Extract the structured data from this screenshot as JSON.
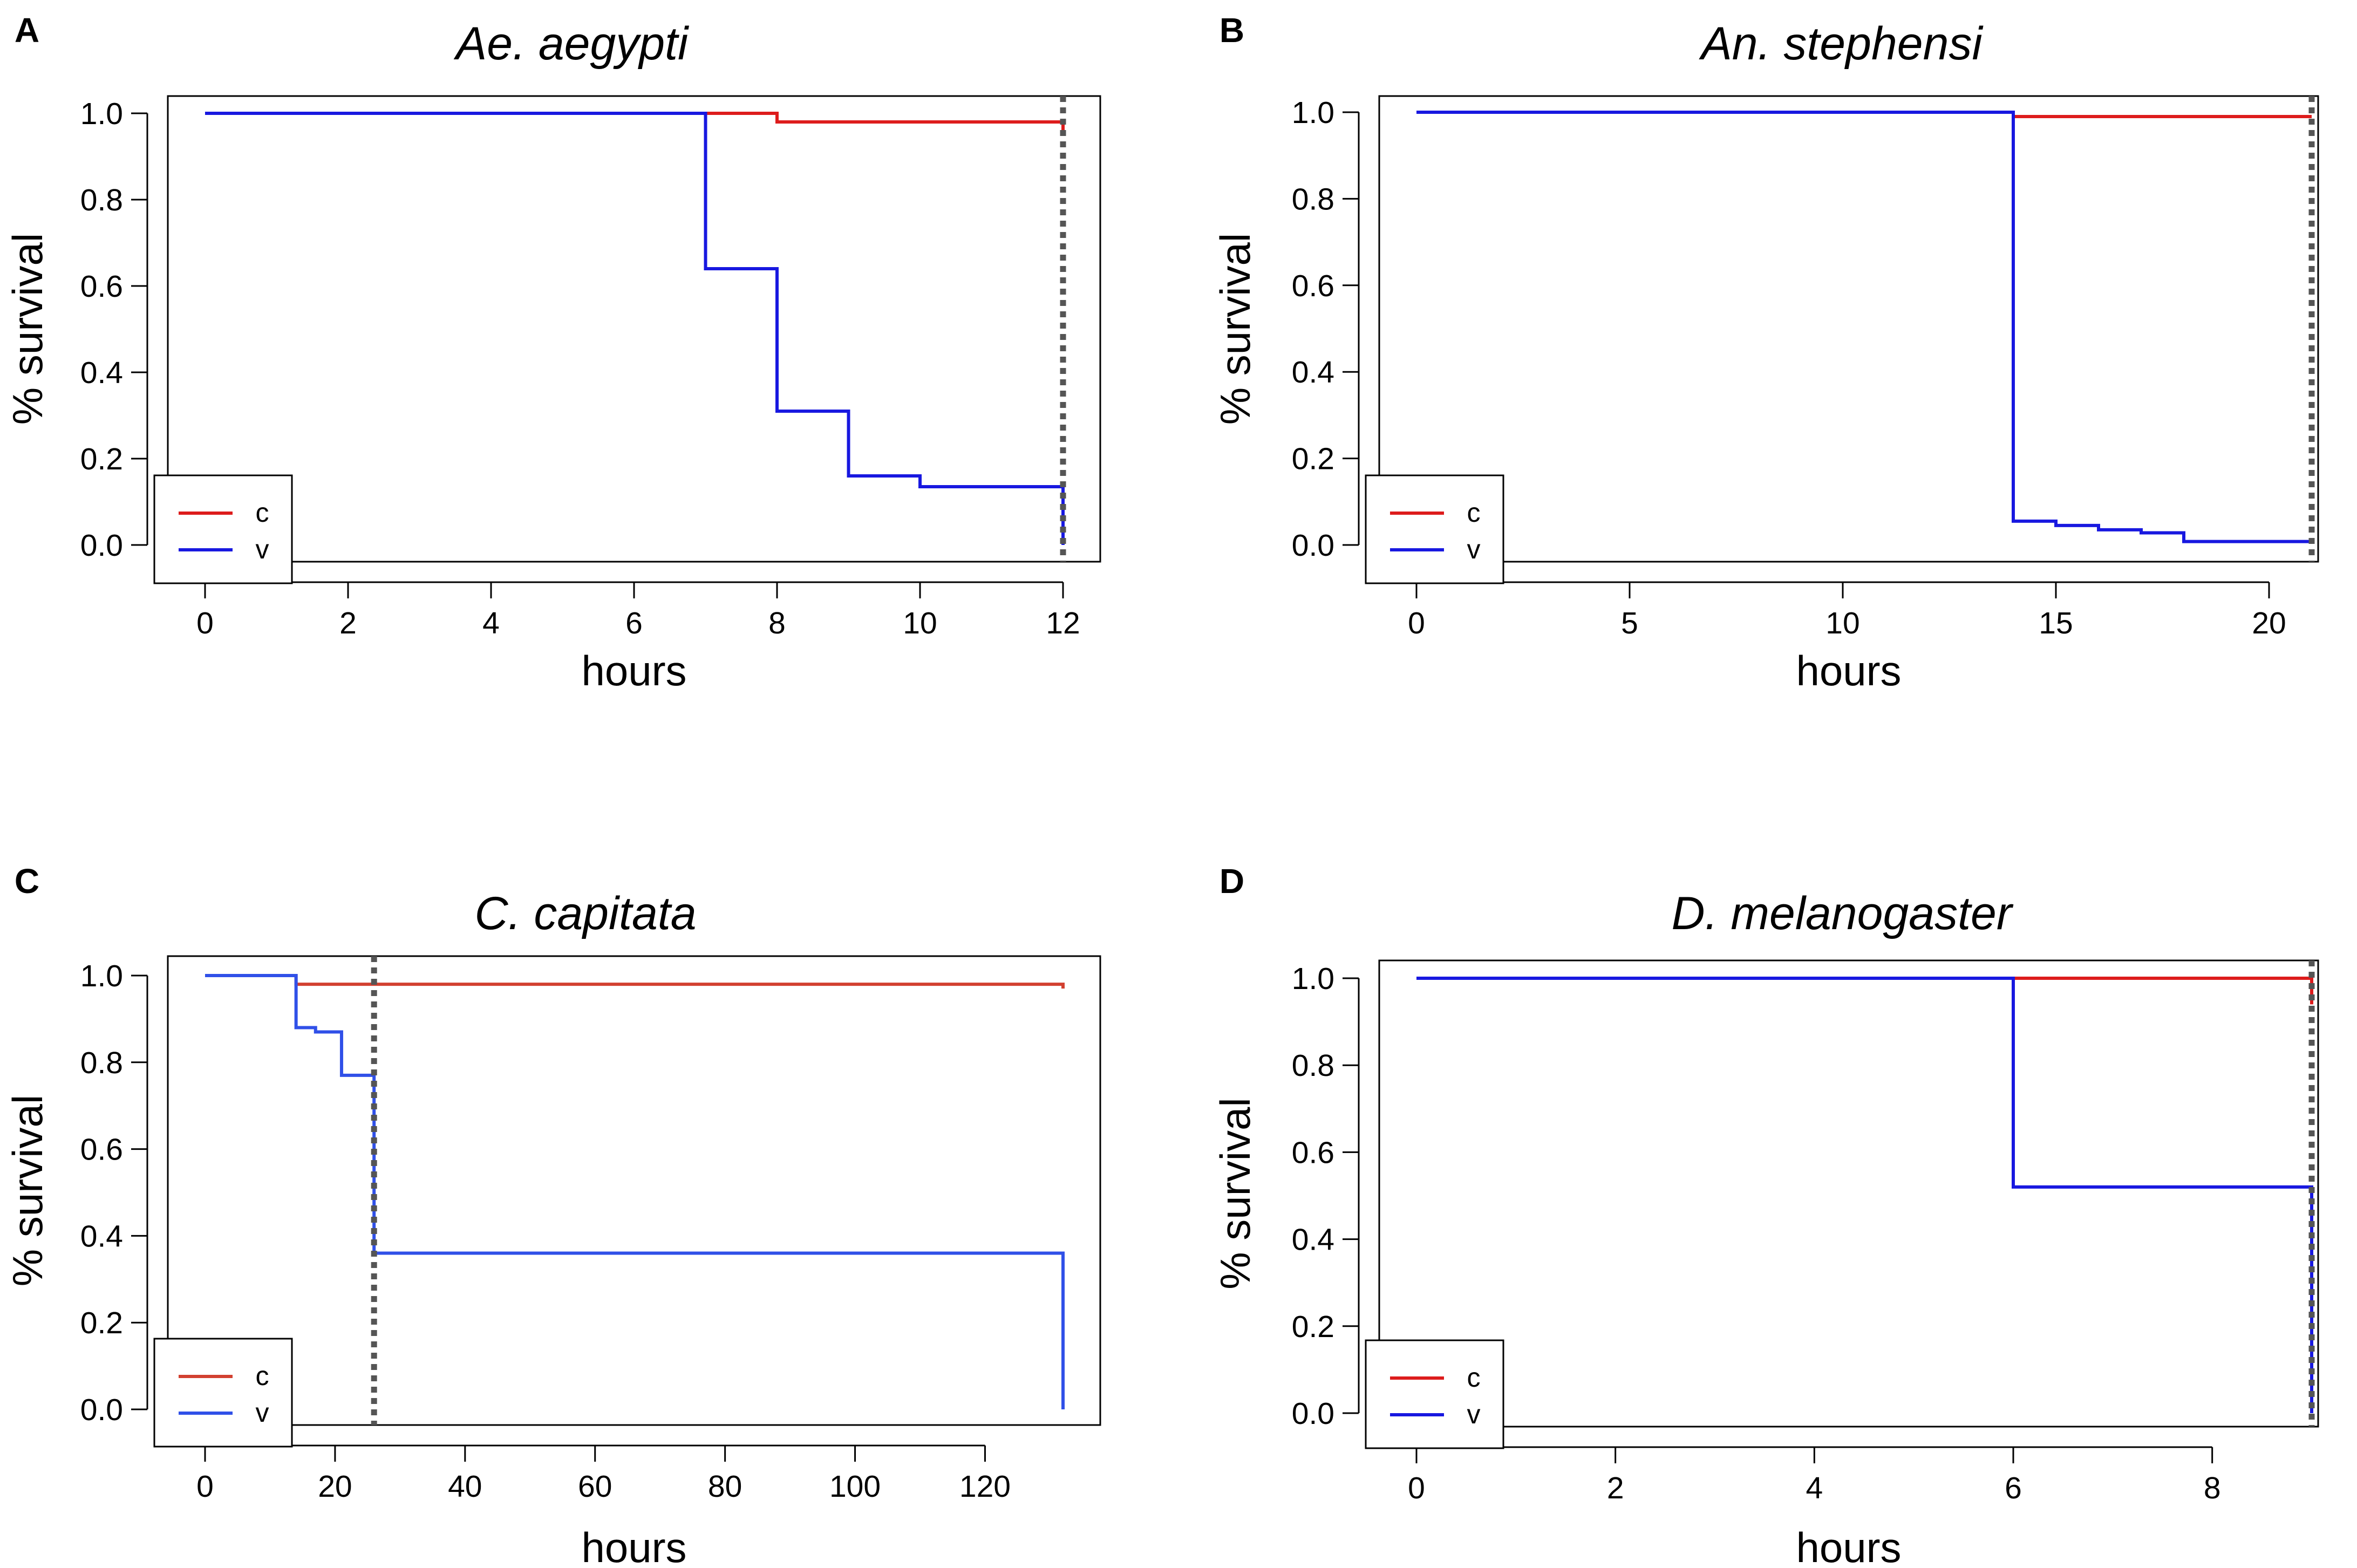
{
  "figure": {
    "panels": [
      {
        "letter": "A"
      },
      {
        "letter": "B"
      },
      {
        "letter": "C"
      },
      {
        "letter": "D"
      }
    ]
  },
  "chart_data": [
    {
      "type": "line",
      "step": true,
      "title": "Ae. aegypti",
      "xlabel": "hours",
      "ylabel": "% survival",
      "xlim": [
        0,
        12
      ],
      "ylim": [
        0,
        1
      ],
      "xticks": [
        "0",
        "2",
        "4",
        "6",
        "8",
        "10",
        "12"
      ],
      "xtick_values": [
        0,
        2,
        4,
        6,
        8,
        10,
        12
      ],
      "yticks": [
        "0.0",
        "0.2",
        "0.4",
        "0.6",
        "0.8",
        "1.0"
      ],
      "ytick_values": [
        0,
        0.2,
        0.4,
        0.6,
        0.8,
        1.0
      ],
      "legend": {
        "position": "bottom-left",
        "entries": [
          "c",
          "v"
        ]
      },
      "reference_line": {
        "x": 12,
        "style": "dotted",
        "color": "#555555"
      },
      "series": [
        {
          "name": "c",
          "color": "#dd1c1c",
          "x": [
            0,
            8,
            12
          ],
          "y": [
            1.0,
            0.98,
            0.96
          ]
        },
        {
          "name": "v",
          "color": "#1818e0",
          "x": [
            0,
            7,
            8,
            9,
            10,
            12
          ],
          "y": [
            1.0,
            0.64,
            0.31,
            0.16,
            0.135,
            0.0
          ]
        }
      ]
    },
    {
      "type": "line",
      "step": true,
      "title": "An. stephensi",
      "xlabel": "hours",
      "ylabel": "% survival",
      "xlim": [
        0,
        21
      ],
      "ylim": [
        0,
        1
      ],
      "xticks": [
        "0",
        "5",
        "10",
        "15",
        "20"
      ],
      "xtick_values": [
        0,
        5,
        10,
        15,
        20
      ],
      "yticks": [
        "0.0",
        "0.2",
        "0.4",
        "0.6",
        "0.8",
        "1.0"
      ],
      "ytick_values": [
        0,
        0.2,
        0.4,
        0.6,
        0.8,
        1.0
      ],
      "legend": {
        "position": "bottom-left",
        "entries": [
          "c",
          "v"
        ]
      },
      "reference_line": {
        "x": 21,
        "style": "dotted",
        "color": "#555555"
      },
      "series": [
        {
          "name": "c",
          "color": "#dd1c1c",
          "x": [
            0,
            14,
            21
          ],
          "y": [
            1.0,
            0.99,
            0.99
          ]
        },
        {
          "name": "v",
          "color": "#1818e0",
          "x": [
            0,
            14,
            15,
            16,
            17,
            18,
            21
          ],
          "y": [
            1.0,
            0.055,
            0.045,
            0.035,
            0.028,
            0.008,
            0.005
          ]
        }
      ]
    },
    {
      "type": "line",
      "step": true,
      "title": "C. capitata",
      "xlabel": "hours",
      "ylabel": "% survival",
      "xlim": [
        0,
        132
      ],
      "ylim": [
        0,
        1
      ],
      "xticks": [
        "0",
        "20",
        "40",
        "60",
        "80",
        "100",
        "120"
      ],
      "xtick_values": [
        0,
        20,
        40,
        60,
        80,
        100,
        120
      ],
      "yticks": [
        "0.0",
        "0.2",
        "0.4",
        "0.6",
        "0.8",
        "1.0"
      ],
      "ytick_values": [
        0,
        0.2,
        0.4,
        0.6,
        0.8,
        1.0
      ],
      "legend": {
        "position": "bottom-left",
        "entries": [
          "c",
          "v"
        ]
      },
      "reference_line": {
        "x": 26,
        "style": "dotted",
        "color": "#555555"
      },
      "series": [
        {
          "name": "c",
          "color": "#d24030",
          "x": [
            0,
            14,
            132
          ],
          "y": [
            1.0,
            0.98,
            0.97
          ]
        },
        {
          "name": "v",
          "color": "#3050e8",
          "x": [
            0,
            14,
            17,
            21,
            26,
            132
          ],
          "y": [
            1.0,
            0.88,
            0.87,
            0.77,
            0.36,
            0.0
          ]
        }
      ]
    },
    {
      "type": "line",
      "step": true,
      "title": "D. melanogaster",
      "xlabel": "hours",
      "ylabel": "% survival",
      "xlim": [
        0,
        9
      ],
      "ylim": [
        0,
        1
      ],
      "xticks": [
        "0",
        "2",
        "4",
        "6",
        "8"
      ],
      "xtick_values": [
        0,
        2,
        4,
        6,
        8
      ],
      "yticks": [
        "0.0",
        "0.2",
        "0.4",
        "0.6",
        "0.8",
        "1.0"
      ],
      "ytick_values": [
        0,
        0.2,
        0.4,
        0.6,
        0.8,
        1.0
      ],
      "legend": {
        "position": "bottom-left",
        "entries": [
          "c",
          "v"
        ]
      },
      "reference_line": {
        "x": 9,
        "style": "dotted",
        "color": "#555555"
      },
      "series": [
        {
          "name": "c",
          "color": "#dd1c1c",
          "x": [
            0,
            9
          ],
          "y": [
            1.0,
            0.94
          ]
        },
        {
          "name": "v",
          "color": "#1818e0",
          "x": [
            0,
            6,
            9
          ],
          "y": [
            1.0,
            0.52,
            0.0
          ]
        }
      ]
    }
  ]
}
